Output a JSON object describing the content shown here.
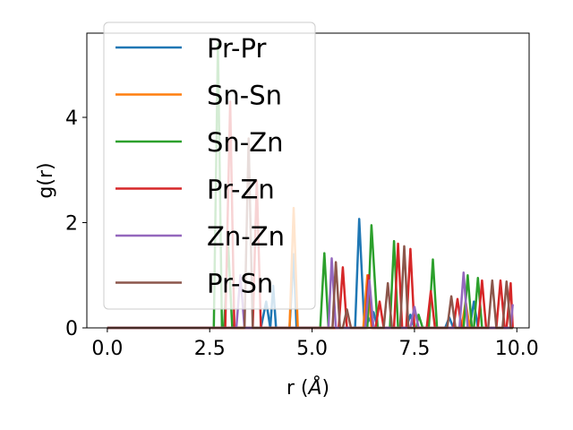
{
  "chart_data": {
    "type": "line",
    "xlabel": "r (",
    "xlabel_unit": "Å",
    "xlabel_close": ")",
    "ylabel": "g(r)",
    "xlim": [
      -0.5,
      10.3
    ],
    "ylim": [
      0,
      5.6
    ],
    "xticks": [
      0.0,
      2.5,
      5.0,
      7.5,
      10.0
    ],
    "xtick_labels": [
      "0.0",
      "2.5",
      "5.0",
      "7.5",
      "10.0"
    ],
    "yticks": [
      0,
      2,
      4
    ],
    "ytick_labels": [
      "0",
      "2",
      "4"
    ],
    "grid": false,
    "legend_position": "top-left",
    "series": [
      {
        "name": "Pr-Pr",
        "color": "#1f77b4",
        "points": [
          [
            0,
            0
          ],
          [
            3.75,
            0
          ],
          [
            3.88,
            0.5
          ],
          [
            3.98,
            0
          ],
          [
            4.05,
            0.8
          ],
          [
            4.12,
            0
          ],
          [
            4.45,
            0
          ],
          [
            4.55,
            1.4
          ],
          [
            4.62,
            0
          ],
          [
            6.05,
            0
          ],
          [
            6.15,
            2.07
          ],
          [
            6.28,
            0
          ],
          [
            6.5,
            0.3
          ],
          [
            6.6,
            0
          ],
          [
            7.3,
            0
          ],
          [
            7.4,
            0.25
          ],
          [
            7.5,
            0
          ],
          [
            8.25,
            0
          ],
          [
            8.35,
            0.2
          ],
          [
            8.45,
            0
          ],
          [
            8.85,
            0
          ],
          [
            8.95,
            0.5
          ],
          [
            9.05,
            0
          ],
          [
            9.9,
            0
          ]
        ]
      },
      {
        "name": "Sn-Sn",
        "color": "#ff7f0e",
        "points": [
          [
            0,
            0
          ],
          [
            4.45,
            0
          ],
          [
            4.55,
            2.28
          ],
          [
            4.65,
            0
          ],
          [
            6.25,
            0
          ],
          [
            6.35,
            1.0
          ],
          [
            6.45,
            0
          ],
          [
            8.65,
            0
          ],
          [
            8.75,
            0.5
          ],
          [
            8.85,
            0
          ],
          [
            9.9,
            0
          ]
        ]
      },
      {
        "name": "Sn-Zn",
        "color": "#2ca02c",
        "points": [
          [
            0,
            0
          ],
          [
            2.6,
            0
          ],
          [
            2.7,
            5.4
          ],
          [
            2.8,
            0
          ],
          [
            2.85,
            0
          ],
          [
            2.95,
            1.6
          ],
          [
            3.05,
            0
          ],
          [
            5.2,
            0
          ],
          [
            5.3,
            1.42
          ],
          [
            5.4,
            0
          ],
          [
            6.35,
            0
          ],
          [
            6.45,
            1.95
          ],
          [
            6.6,
            0
          ],
          [
            6.9,
            0
          ],
          [
            7.0,
            1.65
          ],
          [
            7.1,
            0
          ],
          [
            7.55,
            0
          ],
          [
            7.6,
            0.25
          ],
          [
            7.7,
            0
          ],
          [
            7.85,
            0
          ],
          [
            7.95,
            1.3
          ],
          [
            8.05,
            0
          ],
          [
            8.7,
            0
          ],
          [
            8.8,
            1.0
          ],
          [
            8.9,
            0
          ],
          [
            8.95,
            0
          ],
          [
            9.05,
            0.95
          ],
          [
            9.15,
            0
          ],
          [
            9.9,
            0
          ]
        ]
      },
      {
        "name": "Pr-Zn",
        "color": "#d62728",
        "points": [
          [
            0,
            0
          ],
          [
            2.88,
            0
          ],
          [
            3.0,
            4.3
          ],
          [
            3.1,
            0
          ],
          [
            3.55,
            0
          ],
          [
            3.65,
            2.8
          ],
          [
            3.75,
            0
          ],
          [
            5.65,
            0
          ],
          [
            5.75,
            1.15
          ],
          [
            5.85,
            0
          ],
          [
            6.3,
            0
          ],
          [
            6.38,
            1.0
          ],
          [
            6.48,
            0
          ],
          [
            6.55,
            0
          ],
          [
            6.65,
            0.5
          ],
          [
            6.75,
            0
          ],
          [
            7.0,
            0
          ],
          [
            7.1,
            1.6
          ],
          [
            7.2,
            0
          ],
          [
            7.3,
            0
          ],
          [
            7.4,
            1.5
          ],
          [
            7.5,
            0
          ],
          [
            7.8,
            0
          ],
          [
            7.9,
            0.7
          ],
          [
            8.0,
            0
          ],
          [
            8.45,
            0
          ],
          [
            8.55,
            0.55
          ],
          [
            8.65,
            0
          ],
          [
            9.05,
            0
          ],
          [
            9.15,
            0.9
          ],
          [
            9.25,
            0
          ],
          [
            9.5,
            0
          ],
          [
            9.6,
            0.9
          ],
          [
            9.7,
            0
          ],
          [
            9.75,
            0
          ],
          [
            9.85,
            0.85
          ],
          [
            9.9,
            0
          ]
        ]
      },
      {
        "name": "Zn-Zn",
        "color": "#9467bd",
        "points": [
          [
            0,
            0
          ],
          [
            3.15,
            0
          ],
          [
            3.25,
            1.0
          ],
          [
            3.35,
            0
          ],
          [
            5.4,
            0
          ],
          [
            5.48,
            1.32
          ],
          [
            5.58,
            0
          ],
          [
            6.3,
            0
          ],
          [
            6.4,
            0.9
          ],
          [
            6.5,
            0
          ],
          [
            7.4,
            0
          ],
          [
            7.5,
            0.4
          ],
          [
            7.6,
            0
          ],
          [
            8.6,
            0
          ],
          [
            8.7,
            1.05
          ],
          [
            8.8,
            0
          ],
          [
            9.85,
            0
          ],
          [
            9.9,
            0.45
          ]
        ]
      },
      {
        "name": "Pr-Sn",
        "color": "#8c564b",
        "points": [
          [
            0,
            0
          ],
          [
            3.35,
            0
          ],
          [
            3.45,
            3.6
          ],
          [
            3.55,
            0
          ],
          [
            5.5,
            0
          ],
          [
            5.58,
            1.25
          ],
          [
            5.68,
            0
          ],
          [
            5.75,
            0
          ],
          [
            5.85,
            0.35
          ],
          [
            5.95,
            0
          ],
          [
            6.75,
            0
          ],
          [
            6.85,
            0.85
          ],
          [
            6.95,
            0
          ],
          [
            7.15,
            0
          ],
          [
            7.25,
            1.55
          ],
          [
            7.35,
            0
          ],
          [
            8.3,
            0
          ],
          [
            8.4,
            0.6
          ],
          [
            8.5,
            0
          ],
          [
            9.3,
            0
          ],
          [
            9.4,
            0.9
          ],
          [
            9.5,
            0
          ],
          [
            9.65,
            0
          ],
          [
            9.75,
            0.88
          ],
          [
            9.85,
            0
          ],
          [
            9.9,
            0
          ]
        ]
      }
    ]
  }
}
